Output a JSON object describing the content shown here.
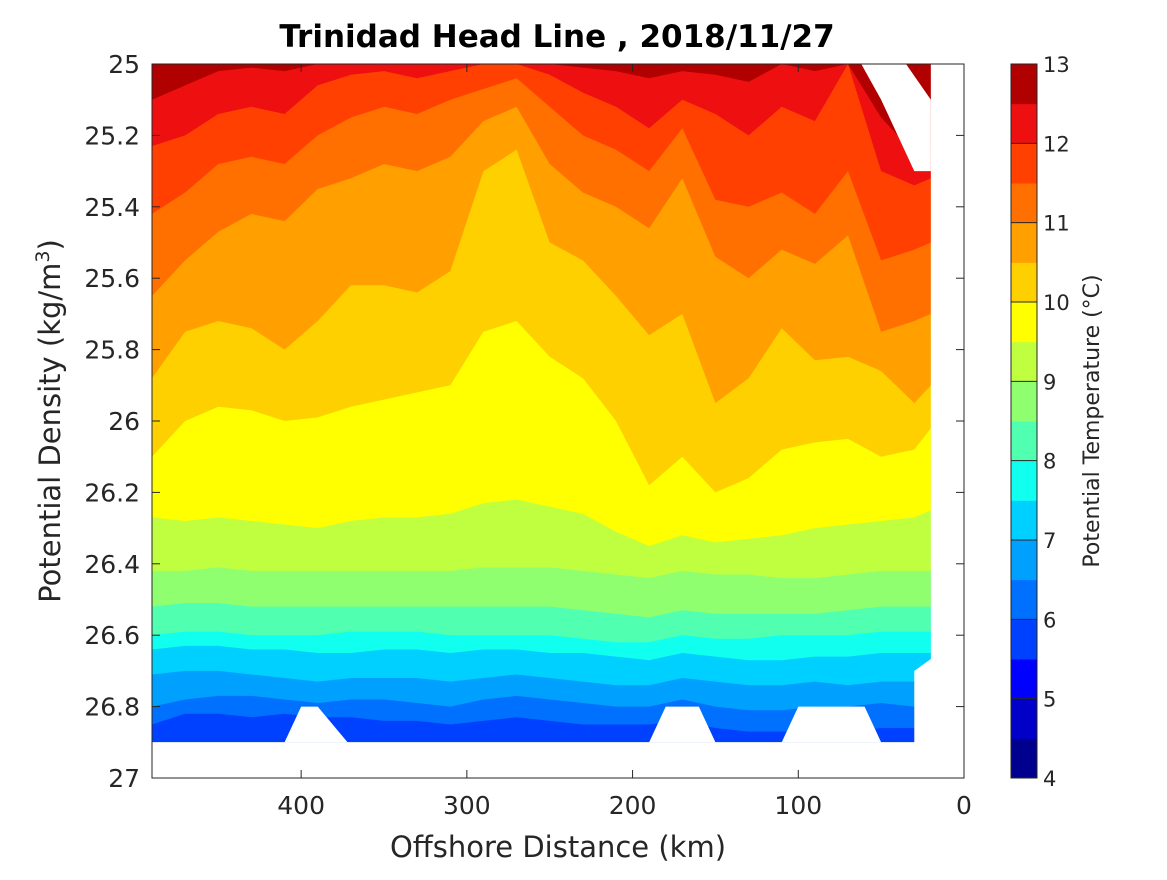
{
  "chart_data": {
    "type": "contour",
    "title": "Trinidad Head Line , 2018/11/27",
    "xlabel": "Offshore Distance (km)",
    "ylabel": "Potential Density (kg/m",
    "ylabel_sup": "3",
    "ylabel_end": ")",
    "xlim": [
      490,
      0
    ],
    "ylim": [
      25,
      27
    ],
    "x_reversed": true,
    "y_reversed": true,
    "xticks": [
      400,
      300,
      200,
      100,
      0
    ],
    "xtick_labels": [
      "400",
      "300",
      "200",
      "100",
      "0"
    ],
    "yticks": [
      25,
      25.2,
      25.4,
      25.6,
      25.8,
      26,
      26.2,
      26.4,
      26.6,
      26.8,
      27
    ],
    "ytick_labels": [
      "25",
      "25.2",
      "25.4",
      "25.6",
      "25.8",
      "26",
      "26.2",
      "26.4",
      "26.6",
      "26.8",
      "27"
    ],
    "colorbar": {
      "label": "Potential Temperature (°C)",
      "range": [
        4,
        13
      ],
      "ticks": [
        "13",
        "12",
        "11",
        "10",
        "9",
        "8",
        "7",
        "6",
        "5",
        "4"
      ],
      "tick_values": [
        13,
        12,
        11,
        10,
        9,
        8,
        7,
        6,
        5,
        4
      ],
      "level_step": 0.5,
      "colors": [
        "#00008f",
        "#0000c8",
        "#0000ff",
        "#0040ff",
        "#0070ff",
        "#00a0ff",
        "#00d0ff",
        "#10ffef",
        "#50ffaf",
        "#8fff70",
        "#c0ff40",
        "#ffff00",
        "#ffd000",
        "#ff9f00",
        "#ff7000",
        "#ff4000",
        "#ee1010",
        "#b00000"
      ]
    },
    "station_x": [
      490,
      470,
      450,
      430,
      410,
      390,
      370,
      350,
      330,
      310,
      290,
      270,
      250,
      230,
      210,
      190,
      170,
      150,
      130,
      110,
      90,
      70,
      50,
      30,
      20
    ],
    "isotherm_boundaries": [
      {
        "temp": 5.5,
        "y": [
          26.85,
          26.82,
          26.82,
          26.83,
          26.82,
          26.83,
          26.83,
          26.84,
          26.84,
          26.85,
          26.84,
          26.83,
          26.84,
          26.85,
          26.85,
          26.85,
          26.84,
          26.86,
          26.87,
          26.87,
          26.87,
          26.87,
          26.86,
          26.86,
          26.86
        ]
      },
      {
        "temp": 6.0,
        "y": [
          26.8,
          26.78,
          26.77,
          26.77,
          26.78,
          26.79,
          26.78,
          26.78,
          26.79,
          26.8,
          26.78,
          26.77,
          26.78,
          26.79,
          26.8,
          26.8,
          26.78,
          26.8,
          26.81,
          26.81,
          26.8,
          26.8,
          26.79,
          26.8,
          26.8
        ]
      },
      {
        "temp": 6.5,
        "y": [
          26.71,
          26.7,
          26.7,
          26.71,
          26.72,
          26.73,
          26.72,
          26.72,
          26.72,
          26.73,
          26.72,
          26.71,
          26.72,
          26.73,
          26.74,
          26.74,
          26.72,
          26.73,
          26.74,
          26.74,
          26.73,
          26.74,
          26.73,
          26.73,
          26.73
        ]
      },
      {
        "temp": 7.0,
        "y": [
          26.64,
          26.63,
          26.63,
          26.64,
          26.64,
          26.65,
          26.65,
          26.64,
          26.64,
          26.65,
          26.64,
          26.64,
          26.65,
          26.65,
          26.66,
          26.67,
          26.65,
          26.66,
          26.67,
          26.67,
          26.66,
          26.66,
          26.65,
          26.65,
          26.65
        ]
      },
      {
        "temp": 7.5,
        "y": [
          26.6,
          26.59,
          26.59,
          26.6,
          26.6,
          26.6,
          26.59,
          26.59,
          26.59,
          26.6,
          26.6,
          26.6,
          26.6,
          26.61,
          26.62,
          26.62,
          26.6,
          26.61,
          26.61,
          26.6,
          26.6,
          26.6,
          26.59,
          26.59,
          26.59
        ]
      },
      {
        "temp": 8.0,
        "y": [
          26.52,
          26.51,
          26.51,
          26.52,
          26.52,
          26.52,
          26.52,
          26.52,
          26.52,
          26.52,
          26.52,
          26.52,
          26.52,
          26.53,
          26.54,
          26.55,
          26.53,
          26.54,
          26.54,
          26.54,
          26.54,
          26.53,
          26.52,
          26.52,
          26.52
        ]
      },
      {
        "temp": 8.5,
        "y": [
          26.42,
          26.42,
          26.41,
          26.42,
          26.42,
          26.42,
          26.42,
          26.42,
          26.42,
          26.42,
          26.41,
          26.41,
          26.41,
          26.42,
          26.43,
          26.44,
          26.42,
          26.43,
          26.43,
          26.44,
          26.44,
          26.43,
          26.42,
          26.42,
          26.42
        ]
      },
      {
        "temp": 9.0,
        "y": [
          26.27,
          26.28,
          26.27,
          26.28,
          26.29,
          26.3,
          26.28,
          26.27,
          26.27,
          26.26,
          26.23,
          26.22,
          26.24,
          26.26,
          26.31,
          26.35,
          26.32,
          26.34,
          26.33,
          26.32,
          26.3,
          26.29,
          26.28,
          26.27,
          26.25
        ]
      },
      {
        "temp": 9.5,
        "y": [
          26.1,
          26.0,
          25.96,
          25.97,
          26.0,
          25.99,
          25.96,
          25.94,
          25.92,
          25.9,
          25.75,
          25.72,
          25.82,
          25.88,
          26.0,
          26.18,
          26.1,
          26.2,
          26.16,
          26.08,
          26.06,
          26.05,
          26.1,
          26.08,
          26.02
        ]
      },
      {
        "temp": 10.0,
        "y": [
          25.88,
          25.75,
          25.72,
          25.74,
          25.8,
          25.72,
          25.62,
          25.62,
          25.64,
          25.58,
          25.3,
          25.24,
          25.5,
          25.55,
          25.65,
          25.76,
          25.7,
          25.95,
          25.88,
          25.74,
          25.83,
          25.82,
          25.86,
          25.95,
          25.9
        ]
      },
      {
        "temp": 10.5,
        "y": [
          25.65,
          25.55,
          25.47,
          25.42,
          25.44,
          25.35,
          25.32,
          25.28,
          25.3,
          25.26,
          25.16,
          25.12,
          25.28,
          25.36,
          25.4,
          25.46,
          25.32,
          25.54,
          25.6,
          25.52,
          25.56,
          25.48,
          25.75,
          25.72,
          25.7
        ]
      },
      {
        "temp": 11.0,
        "y": [
          25.42,
          25.36,
          25.28,
          25.26,
          25.28,
          25.2,
          25.15,
          25.12,
          25.14,
          25.1,
          25.07,
          25.04,
          25.12,
          25.2,
          25.24,
          25.3,
          25.18,
          25.38,
          25.4,
          25.36,
          25.42,
          25.3,
          25.55,
          25.52,
          25.5
        ]
      },
      {
        "temp": 11.5,
        "y": [
          25.23,
          25.2,
          25.14,
          25.12,
          25.14,
          25.06,
          25.03,
          25.02,
          25.04,
          25.02,
          25.0,
          25.0,
          25.03,
          25.08,
          25.12,
          25.18,
          25.1,
          25.14,
          25.2,
          25.12,
          25.16,
          25.0,
          25.3,
          25.34,
          25.32
        ]
      },
      {
        "temp": 12.0,
        "y": [
          25.1,
          25.06,
          25.02,
          25.01,
          25.02,
          25.0,
          25.0,
          25.0,
          25.0,
          25.0,
          25.0,
          25.0,
          25.0,
          25.01,
          25.02,
          25.04,
          25.02,
          25.03,
          25.05,
          25.0,
          25.02,
          25.0,
          25.15,
          25.25,
          25.24
        ]
      },
      {
        "temp": 12.5,
        "y": [
          25.0,
          25.0,
          25.0,
          25.0,
          25.0,
          25.0,
          25.0,
          25.0,
          25.0,
          25.0,
          25.0,
          25.0,
          25.0,
          25.0,
          25.0,
          25.0,
          25.0,
          25.0,
          25.0,
          25.0,
          25.0,
          25.0,
          25.0,
          25.0,
          25.0
        ]
      }
    ]
  }
}
